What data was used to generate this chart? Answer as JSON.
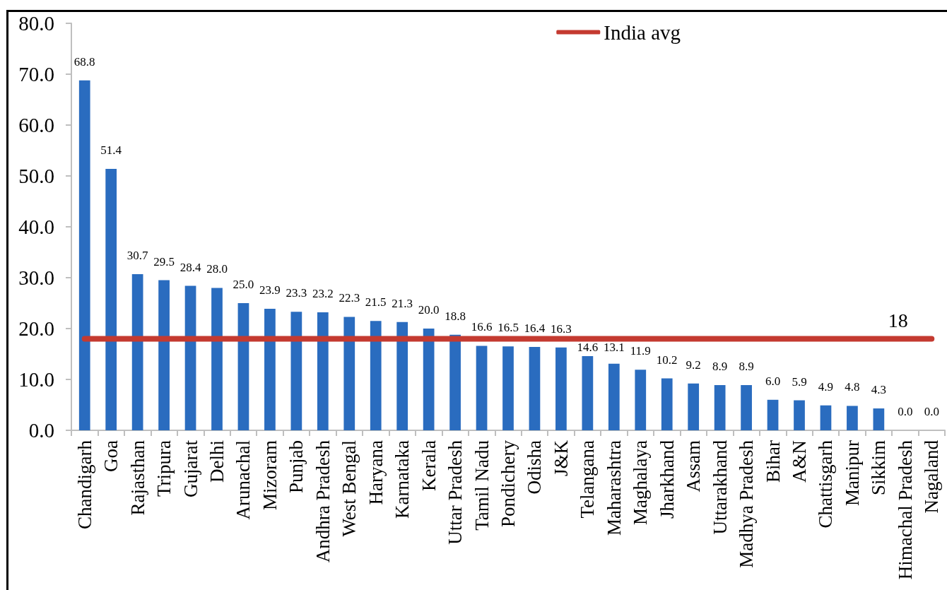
{
  "chart_data": {
    "type": "bar",
    "categories": [
      "Chandigarh",
      "Goa",
      "Rajasthan",
      "Tripura",
      "Gujarat",
      "Delhi",
      "Arunachal",
      "Mizoram",
      "Punjab",
      "Andhra Pradesh",
      "West Bengal",
      "Haryana",
      "Karnataka",
      "Kerala",
      "Uttar Pradesh",
      "Tamil Nadu",
      "Pondichery",
      "Odisha",
      "J&K",
      "Telangana",
      "Maharashtra",
      "Maghalaya",
      "Jharkhand",
      "Assam",
      "Uttarakhand",
      "Madhya Pradesh",
      "Bihar",
      "A&N",
      "Chattisgarh",
      "Manipur",
      "Sikkim",
      "Himachal Pradesh",
      "Nagaland"
    ],
    "series": [
      {
        "color": "#2a6cbf",
        "values": [
          68.8,
          51.4,
          30.7,
          29.5,
          28.4,
          28.0,
          25.0,
          23.9,
          23.3,
          23.2,
          22.3,
          21.5,
          21.3,
          20.0,
          18.8,
          16.6,
          16.5,
          16.4,
          16.3,
          14.6,
          13.1,
          11.9,
          10.2,
          9.2,
          8.9,
          8.9,
          6.0,
          5.9,
          4.9,
          4.8,
          4.3,
          0.0,
          0.0
        ],
        "value_labels": [
          "68.8",
          "51.4",
          "30.7",
          "29.5",
          "28.4",
          "28.0",
          "25.0",
          "23.9",
          "23.3",
          "23.2",
          "22.3",
          "21.5",
          "21.3",
          "20.0",
          "18.8",
          "16.6",
          "16.5",
          "16.4",
          "16.3",
          "14.6",
          "13.1",
          "11.9",
          "10.2",
          "9.2",
          "8.9",
          "8.9",
          "6.0",
          "5.9",
          "4.9",
          "4.8",
          "4.3",
          "0.0",
          "0.0"
        ]
      },
      {
        "type": "line",
        "name": "India avg",
        "color": "#c43a30",
        "marker": "none",
        "line_style": "solid",
        "values": [
          18,
          18,
          18,
          18,
          18,
          18,
          18,
          18,
          18,
          18,
          18,
          18,
          18,
          18,
          18,
          18,
          18,
          18,
          18,
          18,
          18,
          18,
          18,
          18,
          18,
          18,
          18,
          18,
          18,
          18,
          18,
          18,
          18
        ],
        "value_labels": [
          null,
          null,
          null,
          null,
          null,
          null,
          null,
          null,
          null,
          null,
          null,
          null,
          null,
          null,
          null,
          null,
          null,
          null,
          null,
          null,
          null,
          null,
          null,
          null,
          null,
          null,
          null,
          null,
          null,
          null,
          null,
          "18",
          null
        ]
      }
    ],
    "ylim": [
      0,
      80
    ],
    "yticks": [
      {
        "value": 0,
        "label": "0.0"
      },
      {
        "value": 10,
        "label": "10.0"
      },
      {
        "value": 20,
        "label": "20.0"
      },
      {
        "value": 30,
        "label": "30.0"
      },
      {
        "value": 40,
        "label": "40.0"
      },
      {
        "value": 50,
        "label": "50.0"
      },
      {
        "value": 60,
        "label": "60.0"
      },
      {
        "value": 70,
        "label": "70.0"
      },
      {
        "value": 80,
        "label": "80.0"
      }
    ],
    "grid": false,
    "legend": "top right"
  }
}
